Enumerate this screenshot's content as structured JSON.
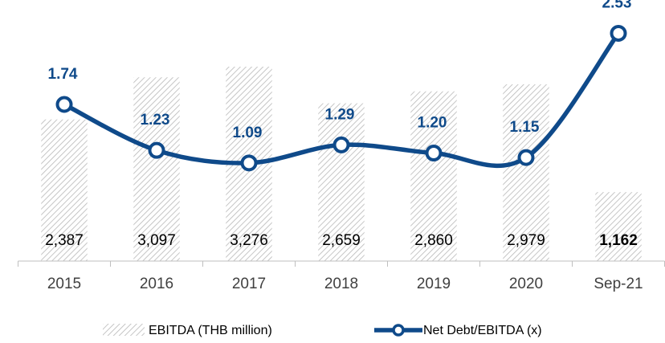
{
  "chart_data": {
    "type": "bar+line",
    "categories": [
      "2015",
      "2016",
      "2017",
      "2018",
      "2019",
      "2020",
      "Sep-21"
    ],
    "ylim": [
      0,
      4400
    ],
    "y2lim": [
      0,
      2.9
    ],
    "series": [
      {
        "name": "EBITDA (THB million)",
        "type": "bar",
        "color": "#b8b8b8",
        "values": [
          2387,
          3097,
          3276,
          2659,
          2860,
          2979,
          1162
        ],
        "value_labels": [
          "2,387",
          "3,097",
          "3,276",
          "2,659",
          "2,860",
          "2,979",
          "1,162"
        ]
      },
      {
        "name": "Net Debt/EBITDA (x)",
        "type": "line",
        "axis": "y2",
        "color": "#0f4a8a",
        "values": [
          1.74,
          1.23,
          1.09,
          1.29,
          1.2,
          1.15,
          2.53
        ],
        "value_labels": [
          "1.74",
          "1.23",
          "1.09",
          "1.29",
          "1.20",
          "1.15",
          "2.53"
        ]
      }
    ],
    "legend": "bottom"
  }
}
